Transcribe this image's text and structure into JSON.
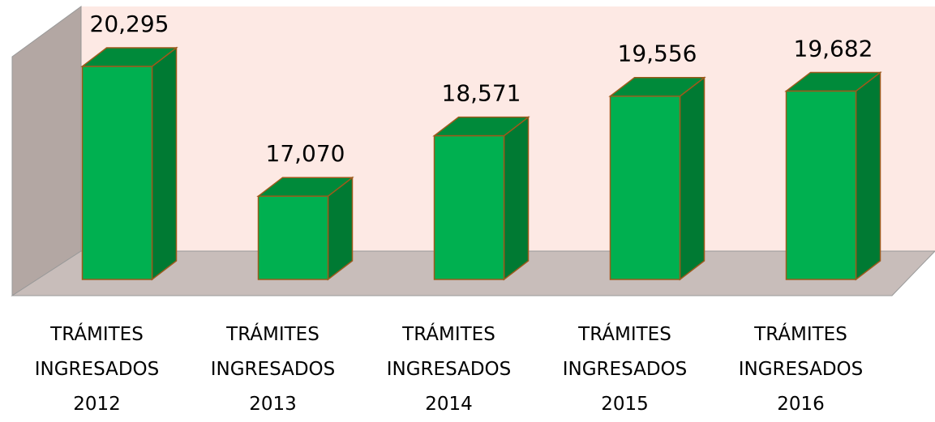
{
  "chart_data": {
    "type": "bar3d",
    "categories": [
      "TRÁMITES INGRESADOS 2012",
      "TRÁMITES INGRESADOS 2013",
      "TRÁMITES INGRESADOS 2014",
      "TRÁMITES INGRESADOS 2015",
      "TRÁMITES INGRESADOS 2016"
    ],
    "values": [
      20295,
      17070,
      18571,
      19556,
      19682
    ],
    "value_labels": [
      "20,295",
      "17,070",
      "18,571",
      "19,556",
      "19,682"
    ],
    "color": "#00b050",
    "ylim": [
      15000,
      21000
    ]
  }
}
